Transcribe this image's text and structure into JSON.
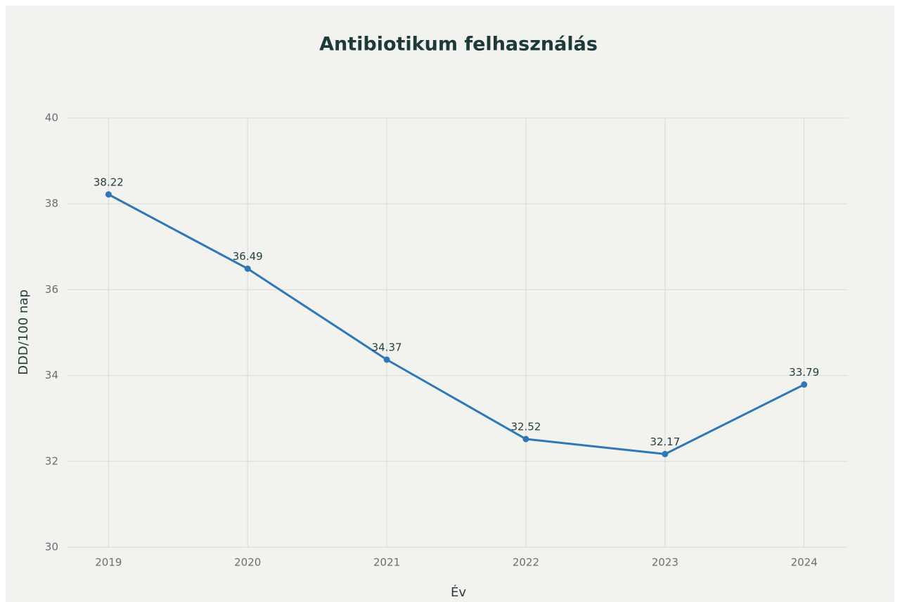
{
  "chart_data": {
    "type": "line",
    "title": "Antibiotikum felhasználás",
    "x_label": "Év",
    "y_label": "DDD/100 nap",
    "x": [
      2019,
      2020,
      2021,
      2022,
      2023,
      2024
    ],
    "series": [
      {
        "name": "DDD/100 nap",
        "color": "#2f78b5",
        "values": [
          38.22,
          36.49,
          34.37,
          32.52,
          32.17,
          33.79
        ]
      }
    ],
    "xlim": [
      2018.7,
      2024.31
    ],
    "xticks": [
      2019,
      2020,
      2021,
      2022,
      2023,
      2024
    ],
    "ylim": [
      30,
      40
    ],
    "yticks": [
      30,
      32,
      34,
      36,
      38,
      40
    ],
    "grid": true
  }
}
